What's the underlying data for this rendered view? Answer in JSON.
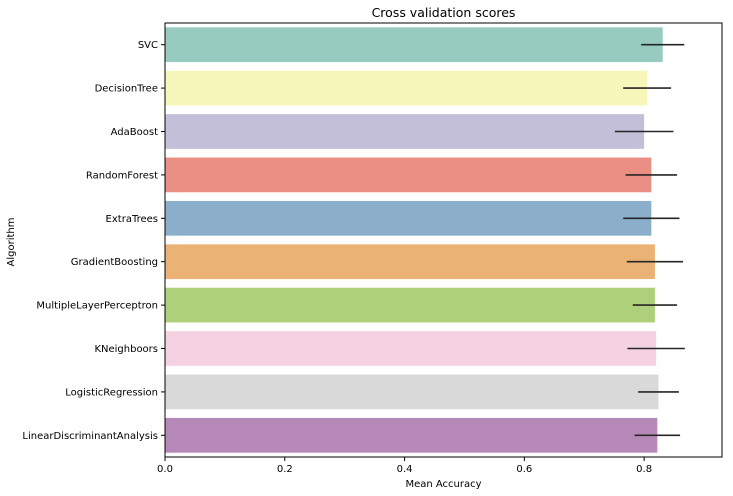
{
  "chart_data": {
    "type": "bar",
    "orientation": "horizontal",
    "title": "Cross validation scores",
    "xlabel": "Mean Accuracy",
    "ylabel": "Algorithm",
    "xlim": [
      0,
      0.93
    ],
    "xticks": [
      "0.0",
      "0.2",
      "0.4",
      "0.6",
      "0.8"
    ],
    "grid": false,
    "categories": [
      "SVC",
      "DecisionTree",
      "AdaBoost",
      "RandomForest",
      "ExtraTrees",
      "GradientBoosting",
      "MultipleLayerPerceptron",
      "KNeighboors",
      "LogisticRegression",
      "LinearDiscriminantAnalysis"
    ],
    "values": [
      0.831,
      0.805,
      0.8,
      0.812,
      0.812,
      0.818,
      0.818,
      0.82,
      0.824,
      0.822
    ],
    "error": [
      0.036,
      0.04,
      0.049,
      0.043,
      0.047,
      0.047,
      0.037,
      0.048,
      0.034,
      0.038
    ],
    "colors": [
      "#97cbbf",
      "#f7f6bb",
      "#c3bfd9",
      "#ea8f84",
      "#8bafcb",
      "#ebb275",
      "#afd07a",
      "#f5d2e2",
      "#d9d9d9",
      "#b688b8"
    ],
    "error_color": "#262626"
  }
}
